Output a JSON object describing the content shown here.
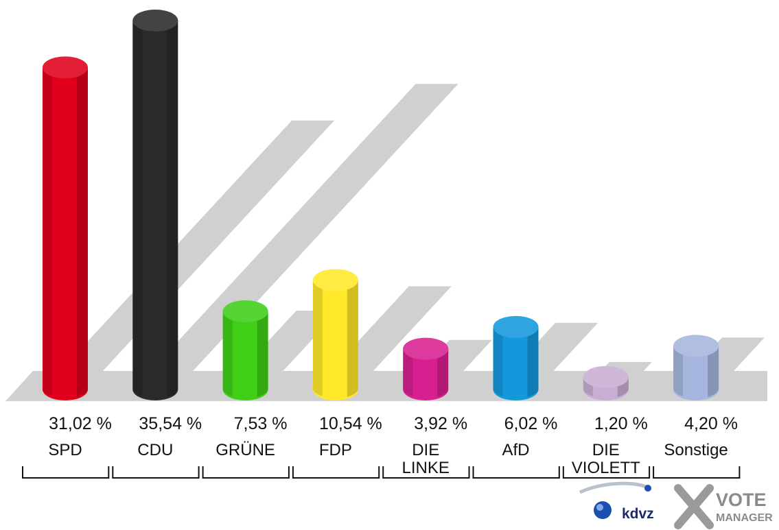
{
  "chart_data": {
    "type": "bar",
    "categories": [
      "SPD",
      "CDU",
      "GRÜNE",
      "FDP",
      "DIE\nLINKE",
      "AfD",
      "DIE\nVIOLETT",
      "Sonstige"
    ],
    "values": [
      31.02,
      35.54,
      7.53,
      10.54,
      3.92,
      6.02,
      1.2,
      4.2
    ],
    "value_labels": [
      "31,02 %",
      "35,54 %",
      "7,53 %",
      "10,54 %",
      "3,92 %",
      "6,02 %",
      "1,20 %",
      "4,20 %"
    ],
    "colors": [
      "#e0001b",
      "#2a2a2a",
      "#3fcf17",
      "#ffe92a",
      "#d81f8f",
      "#1398dc",
      "#c9aed3",
      "#a6b6de"
    ],
    "shadow_color": "#d0d0d0",
    "title": "",
    "xlabel": "",
    "ylabel": "",
    "grid": false,
    "legend": "none"
  },
  "branding": {
    "kdvz_text": "kdvz",
    "vote_text": "VOTE",
    "manager_text": "MANAGER",
    "kdvz_icon": "globe-icon",
    "vote_icon": "x-mark-icon"
  }
}
